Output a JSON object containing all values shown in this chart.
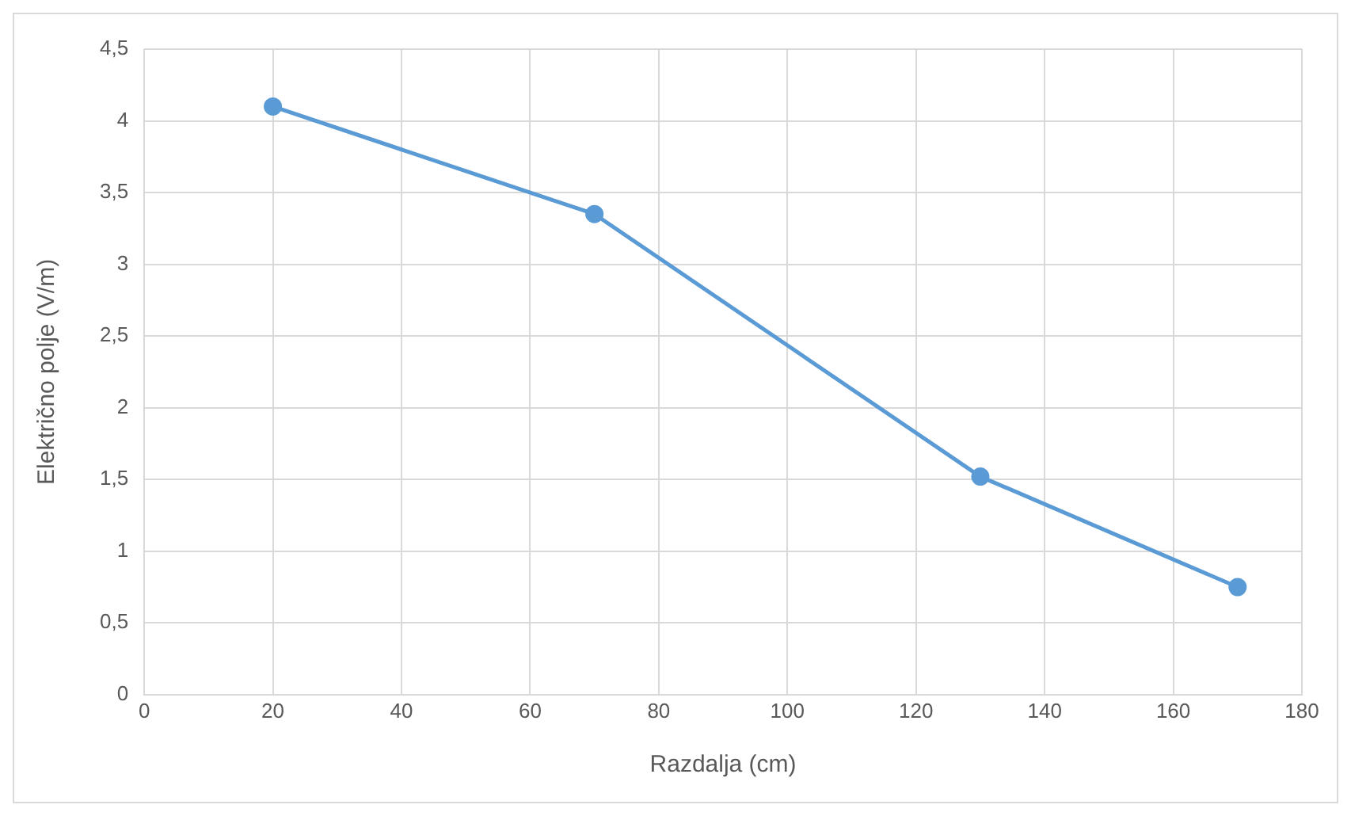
{
  "chart_data": {
    "type": "line",
    "xlabel": "Razdalja (cm)",
    "ylabel": "Električno polje (V/m)",
    "x": [
      20,
      70,
      130,
      170
    ],
    "series": [
      {
        "color": "#5b9bd5",
        "values": [
          4.1,
          3.35,
          1.52,
          0.75
        ]
      }
    ],
    "xlim": [
      0,
      180
    ],
    "xticks": [
      0,
      20,
      40,
      60,
      80,
      100,
      120,
      140,
      160,
      180
    ],
    "ylim": [
      0,
      4.5
    ],
    "yticks": [
      0,
      {
        "value": 0.5,
        "label": "0,5"
      },
      1,
      {
        "value": 1.5,
        "label": "1,5"
      },
      2,
      {
        "value": 2.5,
        "label": "2,5"
      },
      3,
      {
        "value": 3.5,
        "label": "3,5"
      },
      4,
      {
        "value": 4.5,
        "label": "4,5"
      }
    ],
    "grid": true,
    "legend": false,
    "marker": "circle",
    "line_style": "solid"
  }
}
